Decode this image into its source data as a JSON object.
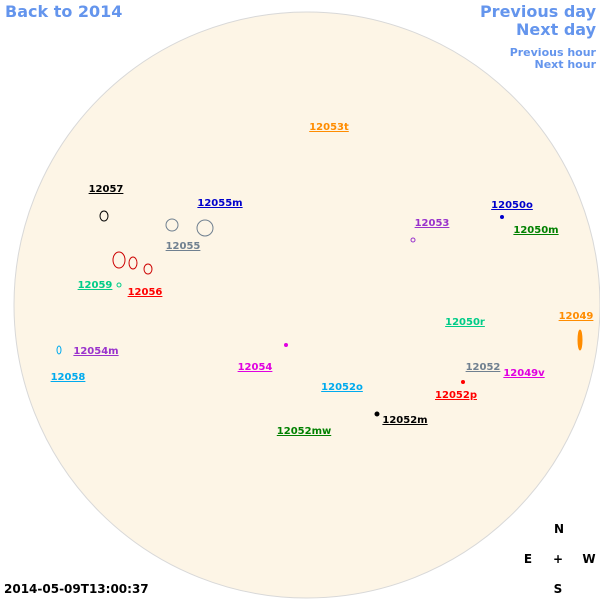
{
  "nav": {
    "back": "Back to 2014",
    "prev_day": "Previous day",
    "next_day": "Next day",
    "prev_hour": "Previous hour",
    "next_hour": "Next hour"
  },
  "regions": [
    {
      "label": "12053t",
      "color": "#ff8c00"
    },
    {
      "label": "12057",
      "color": "#000000"
    },
    {
      "label": "12055m",
      "color": "#0000cc"
    },
    {
      "label": "12050o",
      "color": "#0000cc"
    },
    {
      "label": "12053",
      "color": "#9932cc"
    },
    {
      "label": "12050m",
      "color": "#008000"
    },
    {
      "label": "12055",
      "color": "#708090"
    },
    {
      "label": "12059",
      "color": "#00cc88"
    },
    {
      "label": "12056",
      "color": "#ff0000"
    },
    {
      "label": "12049",
      "color": "#ff8c00"
    },
    {
      "label": "12050r",
      "color": "#00cc88"
    },
    {
      "label": "12054m",
      "color": "#9932cc"
    },
    {
      "label": "12054",
      "color": "#e000e0"
    },
    {
      "label": "12052",
      "color": "#708090"
    },
    {
      "label": "12058",
      "color": "#00aaee"
    },
    {
      "label": "12049v",
      "color": "#e000e0"
    },
    {
      "label": "12052o",
      "color": "#00aaee"
    },
    {
      "label": "12052p",
      "color": "#ff0000"
    },
    {
      "label": "12052m",
      "color": "#000000"
    },
    {
      "label": "12052mw",
      "color": "#008000"
    }
  ],
  "compass": {
    "north": "N",
    "east": "E",
    "center": "+",
    "west": "W",
    "south": "S"
  },
  "timestamp": "2014-05-09T13:00:37"
}
